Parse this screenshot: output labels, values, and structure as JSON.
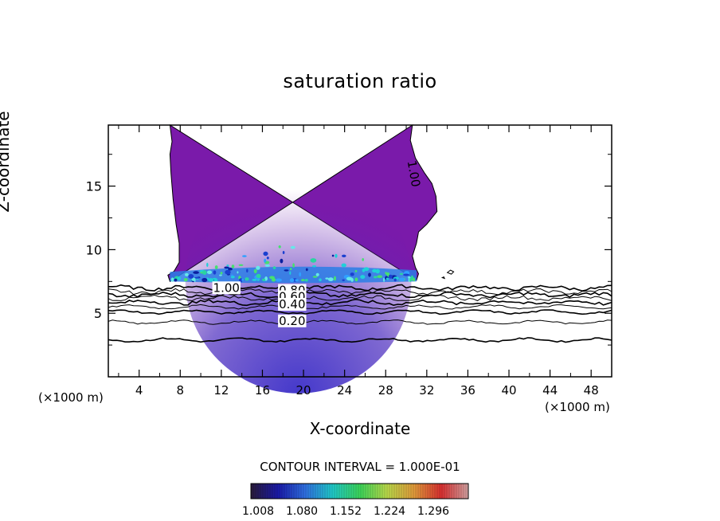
{
  "chart_data": {
    "type": "heatmap",
    "title": "saturation ratio",
    "xlabel": "X-coordinate",
    "ylabel": "Z-coordinate",
    "x_unit_left": "(×1000 m)",
    "x_unit_right": "(×1000 m)",
    "xlim": [
      1,
      50
    ],
    "ylim": [
      0,
      19.8
    ],
    "x_ticks": [
      4,
      8,
      12,
      16,
      20,
      24,
      28,
      32,
      36,
      40,
      44,
      48
    ],
    "y_ticks": [
      5,
      10,
      15
    ],
    "contour_interval_label": "CONTOUR INTERVAL = 1.000E-01",
    "colorbar": {
      "ticks": [
        "1.008",
        "1.080",
        "1.152",
        "1.224",
        "1.296"
      ],
      "colors": [
        "#2a1a3a",
        "#1a1aa8",
        "#2f6fe0",
        "#20c8c8",
        "#3ad45a",
        "#b8d84a",
        "#e09a3a",
        "#d83030",
        "#d0a0a0"
      ]
    },
    "contour_labels": [
      {
        "text": "1.00",
        "x": 11.2,
        "z": 7.0
      },
      {
        "text": "0.80",
        "x": 17.6,
        "z": 6.8
      },
      {
        "text": "0.60",
        "x": 17.6,
        "z": 6.3
      },
      {
        "text": "0.40",
        "x": 17.6,
        "z": 5.7
      },
      {
        "text": "0.20",
        "x": 17.6,
        "z": 4.4
      },
      {
        "text": "1.00",
        "x": 30.5,
        "z": 17.0
      }
    ],
    "contour_levels": [
      {
        "level": 0.9,
        "z": 7.0
      },
      {
        "level": 0.8,
        "z": 6.7
      },
      {
        "level": 0.7,
        "z": 6.45
      },
      {
        "level": 0.6,
        "z": 6.2
      },
      {
        "level": 0.5,
        "z": 5.85
      },
      {
        "level": 0.4,
        "z": 5.5
      },
      {
        "level": 0.3,
        "z": 5.1
      },
      {
        "level": 0.2,
        "z": 4.3
      },
      {
        "level": 0.1,
        "z": 2.9
      }
    ],
    "supersaturated_region": {
      "base_z": 7.5,
      "top_z": 19.8,
      "x_range_at_base": [
        7,
        31
      ],
      "fill_color": "#7a1aaa"
    }
  }
}
